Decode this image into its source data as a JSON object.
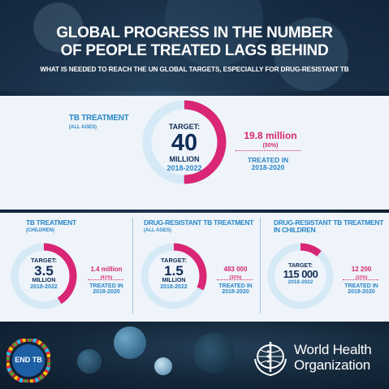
{
  "header": {
    "title_line1": "GLOBAL PROGRESS IN THE NUMBER",
    "title_line2": "OF PEOPLE TREATED LAGS BEHIND",
    "subtitle": "WHAT IS NEEDED TO REACH THE UN GLOBAL TARGETS, ESPECIALLY FOR DRUG-RESISTANT TB"
  },
  "panels": {
    "tb_all": {
      "label": "TB TREATMENT",
      "sublabel": "(ALL AGES)",
      "target_label": "TARGET:",
      "target_number": "40",
      "target_unit": "MILLION",
      "target_years": "2018-2022",
      "treated_value": "19.8 million",
      "treated_pct": "(50%)",
      "treated_label_1": "TREATED IN",
      "treated_label_2": "2018-2020",
      "progress": 0.5
    },
    "tb_children": {
      "label": "TB TREATMENT",
      "sublabel": "(CHILDREN)",
      "target_label": "TARGET:",
      "target_number": "3.5",
      "target_unit": "MILLION",
      "target_years": "2018-2022",
      "treated_value": "1.4 million",
      "treated_pct": "(41%)",
      "treated_label_1": "TREATED IN",
      "treated_label_2": "2018-2020",
      "progress": 0.41
    },
    "dr_tb_all": {
      "label": "DRUG-RESISTANT TB TREATMENT",
      "sublabel": "(ALL AGES)",
      "target_label": "TARGET:",
      "target_number": "1.5",
      "target_unit": "MILLION",
      "target_years": "2018-2022",
      "treated_value": "483 000",
      "treated_pct": "(32%)",
      "treated_label_1": "TREATED IN",
      "treated_label_2": "2018-2020",
      "progress": 0.32
    },
    "dr_tb_children": {
      "label_line1": "DRUG-RESISTANT TB TREATMENT",
      "label_line2": "IN CHILDREN",
      "target_label": "TARGET:",
      "target_number": "115 000",
      "target_years": "2018-2022",
      "treated_value": "12 200",
      "treated_pct": "(11%)",
      "treated_label_1": "TREATED IN",
      "treated_label_2": "2018-2020",
      "progress": 0.11
    }
  },
  "footer": {
    "endtb_logo_text": "END TB",
    "who_name_line1": "World Health",
    "who_name_line2": "Organization"
  },
  "colors": {
    "magenta": "#d92675",
    "light_blue_ring": "#d6e9f6",
    "navy_text": "#0f2d56",
    "blue_text": "#2b86c8",
    "panel_bg": "#eef4f9"
  }
}
